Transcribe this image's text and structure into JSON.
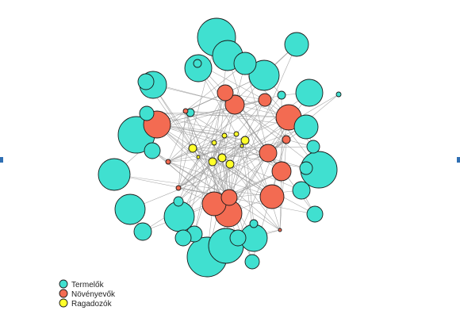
{
  "colors": {
    "producers": "#40e0d0",
    "herbivores": "#f36b52",
    "predators": "#ffff2a",
    "edge": "#9a9a9a",
    "node_outline": "#1a1a1a",
    "side_marker": "#2f6fb3"
  },
  "legend": {
    "items": [
      {
        "label": "Termelők",
        "color": "#40e0d0"
      },
      {
        "label": "Növényevők",
        "color": "#f36b52"
      },
      {
        "label": "Ragadozók",
        "color": "#ffff2a"
      }
    ]
  }
}
